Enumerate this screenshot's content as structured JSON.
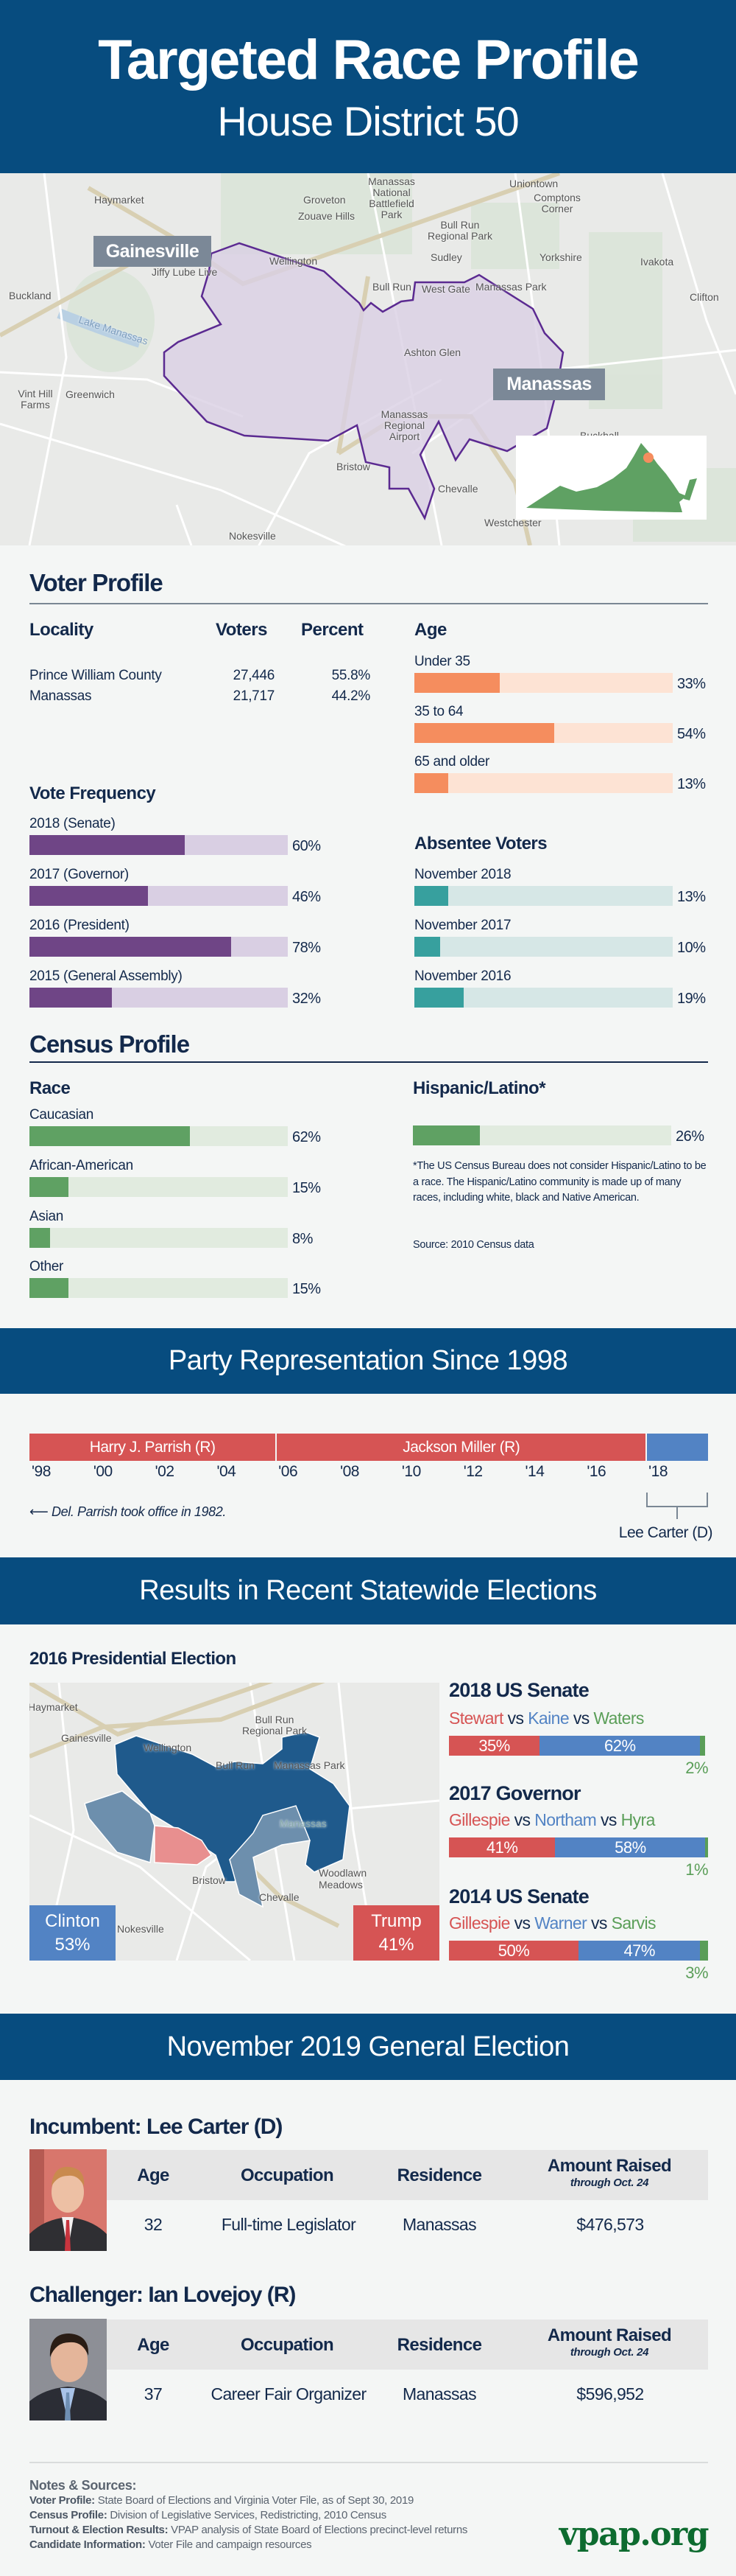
{
  "header": {
    "title": "Targeted Race Profile",
    "subtitle": "House District 50"
  },
  "district_map": {
    "callouts": {
      "gainesville": "Gainesville",
      "manassas": "Manassas"
    },
    "places": [
      "Haymarket",
      "Groveton",
      "Zouave Hills",
      "Manassas National Battlefield Park",
      "Uniontown",
      "Comptons Corner",
      "Bull Run Regional Park",
      "Sudley",
      "Yorkshire",
      "Ivakota",
      "Wellington",
      "Jiffy Lube Live",
      "Bull Run",
      "West Gate",
      "Manassas Park",
      "Buckland",
      "Lake Manassas",
      "Clifton",
      "Ashton Glen",
      "Vint Hill Farms",
      "Greenwich",
      "Manassas Regional Airport",
      "Bristow",
      "Chevalle",
      "Buckhall",
      "Westchester",
      "Nokesville"
    ],
    "colors": {
      "district_fill": "#d9cfe3",
      "district_stroke": "#5b2a91",
      "state": "#5fa163",
      "marker": "#f58d5e"
    }
  },
  "voter_profile": {
    "title": "Voter Profile",
    "locality": {
      "headers": [
        "Locality",
        "Voters",
        "Percent"
      ],
      "rows": [
        {
          "name": "Prince William County",
          "voters": "27,446",
          "percent": "55.8%"
        },
        {
          "name": "Manassas",
          "voters": "21,717",
          "percent": "44.2%"
        }
      ]
    },
    "age": {
      "title": "Age",
      "items": [
        {
          "label": "Under 35",
          "value": 33
        },
        {
          "label": "35 to 64",
          "value": 54
        },
        {
          "label": "65 and older",
          "value": 13
        }
      ]
    },
    "vote_frequency": {
      "title": "Vote Frequency",
      "items": [
        {
          "label": "2018 (Senate)",
          "value": 60
        },
        {
          "label": "2017 (Governor)",
          "value": 46
        },
        {
          "label": "2016 (President)",
          "value": 78
        },
        {
          "label": "2015 (General Assembly)",
          "value": 32
        }
      ]
    },
    "absentee": {
      "title": "Absentee Voters",
      "items": [
        {
          "label": "November 2018",
          "value": 13
        },
        {
          "label": "November 2017",
          "value": 10
        },
        {
          "label": "November 2016",
          "value": 19
        }
      ]
    }
  },
  "census_profile": {
    "title": "Census Profile",
    "race": {
      "title": "Race",
      "items": [
        {
          "label": "Caucasian",
          "value": 62
        },
        {
          "label": "African-American",
          "value": 15
        },
        {
          "label": "Asian",
          "value": 8
        },
        {
          "label": "Other",
          "value": 15
        }
      ]
    },
    "hispanic": {
      "title": "Hispanic/Latino*",
      "value": 26,
      "note": "*The US Census Bureau does not consider Hispanic/Latino to be a race. The Hispanic/Latino community is made up of many races, including white, black and Native American.",
      "source": "Source: 2010 Census data"
    }
  },
  "party_representation": {
    "title": "Party Representation Since 1998",
    "terms": [
      {
        "name": "Harry J. Parrish (R)",
        "start": 1998,
        "end": 2006,
        "party": "R"
      },
      {
        "name": "Jackson Miller (R)",
        "start": 2006,
        "end": 2018,
        "party": "R"
      },
      {
        "name": "Lee Carter (D)",
        "start": 2018,
        "end": 2020,
        "party": "D"
      }
    ],
    "years": [
      "'98",
      "'00",
      "'02",
      "'04",
      "'06",
      "'08",
      "'10",
      "'12",
      "'14",
      "'16",
      "'18"
    ],
    "note": "Del. Parrish took office in 1982.",
    "carter_label": "Lee Carter (D)"
  },
  "statewide": {
    "title": "Results in Recent Statewide Elections",
    "presidential": {
      "title": "2016 Presidential Election",
      "clinton": {
        "name": "Clinton",
        "pct": "53%"
      },
      "trump": {
        "name": "Trump",
        "pct": "41%"
      },
      "places": [
        "Haymarket",
        "Gainesville",
        "Wellington",
        "Bull Run Regional Park",
        "Bull Run",
        "Manassas Park",
        "Manassas",
        "Bristow",
        "Chevalle",
        "Woodlawn Meadows",
        "Nokesville"
      ]
    },
    "races": [
      {
        "title": "2018 US Senate",
        "r": "Stewart",
        "d": "Kaine",
        "g": "Waters",
        "vs": "vs",
        "r_pct": 35,
        "d_pct": 62,
        "g_pct": 2
      },
      {
        "title": "2017 Governor",
        "r": "Gillespie",
        "d": "Northam",
        "g": "Hyra",
        "vs": "vs",
        "r_pct": 41,
        "d_pct": 58,
        "g_pct": 1
      },
      {
        "title": "2014 US Senate",
        "r": "Gillespie",
        "d": "Warner",
        "g": "Sarvis",
        "vs": "vs",
        "r_pct": 50,
        "d_pct": 47,
        "g_pct": 3
      }
    ],
    "colors": {
      "r": "#d65454",
      "d": "#5283c4",
      "g": "#5a9e58"
    }
  },
  "general_election": {
    "title": "November 2019 General Election",
    "headers": {
      "age": "Age",
      "occupation": "Occupation",
      "residence": "Residence",
      "amount": "Amount Raised",
      "amount_sub": "through Oct. 24"
    },
    "incumbent": {
      "title": "Incumbent: Lee Carter (D)",
      "age": "32",
      "occupation": "Full-time Legislator",
      "residence": "Manassas",
      "amount": "$476,573"
    },
    "challenger": {
      "title": "Challenger: Ian Lovejoy (R)",
      "age": "37",
      "occupation": "Career Fair Organizer",
      "residence": "Manassas",
      "amount": "$596,952"
    }
  },
  "footer": {
    "notes_title": "Notes & Sources:",
    "notes": [
      {
        "label": "Voter Profile:",
        "text": " State Board of Elections and Virginia Voter File, as of Sept 30, 2019"
      },
      {
        "label": "Census Profile:",
        "text": " Division of Legislative Services, Redistricting, 2010 Census"
      },
      {
        "label": "Turnout & Election Results:",
        "text": " VPAP analysis of State Board of Elections precinct-level returns"
      },
      {
        "label": "Candidate Information:",
        "text": " Voter File and campaign resources"
      }
    ],
    "logo": "vpap.org"
  }
}
